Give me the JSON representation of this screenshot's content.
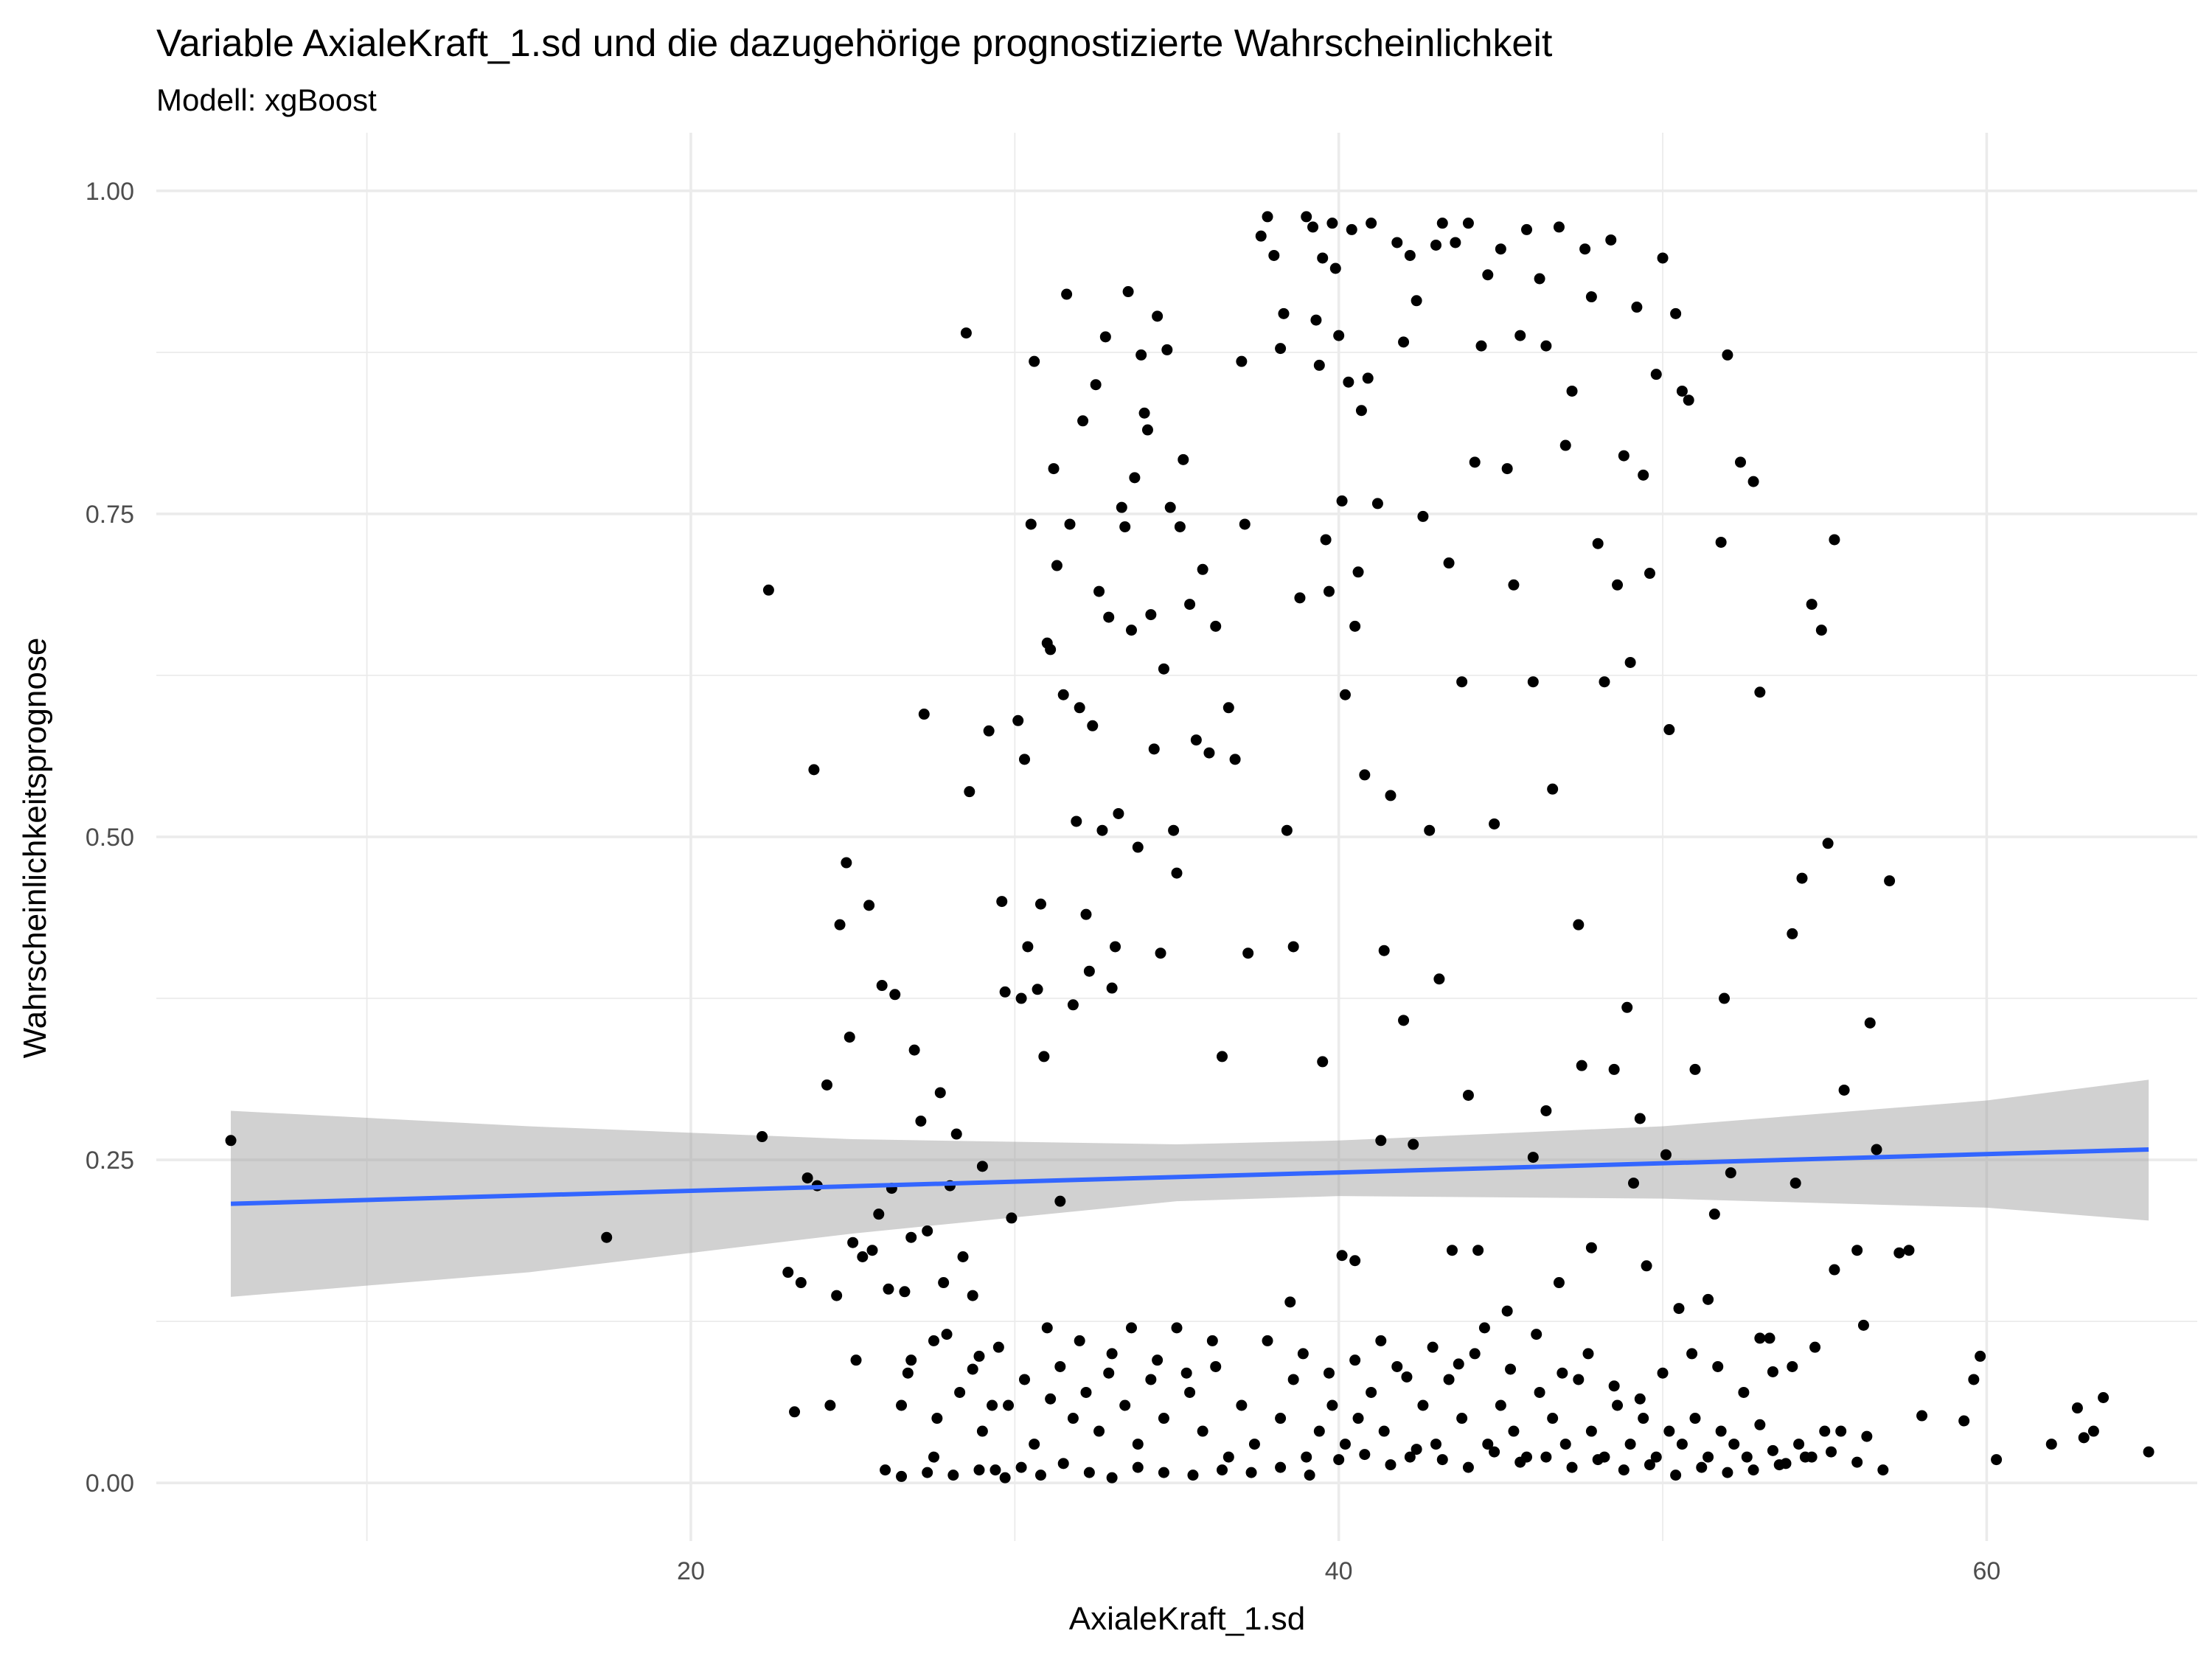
{
  "chart_data": {
    "type": "scatter",
    "title": "Variable AxialeKraft_1.sd und die dazugehörige prognostizierte Wahrscheinlichkeit",
    "subtitle": "Modell: xgBoost",
    "xlabel": "AxialeKraft_1.sd",
    "ylabel": "Wahrscheinlichkeitsprognose",
    "xlim": [
      3.5,
      66.5
    ],
    "ylim": [
      -0.045,
      1.045
    ],
    "x_ticks": [
      20,
      40,
      60
    ],
    "x_tick_labels": [
      "20",
      "40",
      "60"
    ],
    "y_ticks": [
      0,
      0.25,
      0.5,
      0.75,
      1.0
    ],
    "y_tick_labels": [
      "0.00",
      "0.25",
      "0.50",
      "0.75",
      "1.00"
    ],
    "grid": true,
    "point_color": "#000000",
    "trend_line": {
      "method": "linear",
      "color": "#3366FF",
      "x": [
        5.8,
        65.0
      ],
      "y": [
        0.216,
        0.258
      ]
    },
    "confidence_band": {
      "color": "#999999",
      "x": [
        5.8,
        15,
        25,
        35,
        40,
        50,
        60,
        65.0
      ],
      "upper": [
        0.288,
        0.276,
        0.266,
        0.262,
        0.265,
        0.276,
        0.296,
        0.312
      ],
      "lower": [
        0.144,
        0.163,
        0.193,
        0.218,
        0.222,
        0.22,
        0.213,
        0.203
      ]
    },
    "points": [
      [
        5.8,
        0.265
      ],
      [
        17.4,
        0.19
      ],
      [
        22.2,
        0.268
      ],
      [
        22.4,
        0.691
      ],
      [
        23.0,
        0.163
      ],
      [
        23.2,
        0.055
      ],
      [
        23.4,
        0.155
      ],
      [
        23.6,
        0.236
      ],
      [
        23.8,
        0.552
      ],
      [
        23.9,
        0.23
      ],
      [
        24.2,
        0.308
      ],
      [
        24.3,
        0.06
      ],
      [
        24.5,
        0.145
      ],
      [
        24.6,
        0.432
      ],
      [
        24.8,
        0.48
      ],
      [
        24.9,
        0.345
      ],
      [
        25.0,
        0.186
      ],
      [
        25.1,
        0.095
      ],
      [
        25.3,
        0.175
      ],
      [
        25.5,
        0.447
      ],
      [
        25.6,
        0.18
      ],
      [
        25.8,
        0.208
      ],
      [
        25.9,
        0.385
      ],
      [
        26.1,
        0.15
      ],
      [
        26.2,
        0.228
      ],
      [
        26.3,
        0.378
      ],
      [
        26.5,
        0.06
      ],
      [
        26.6,
        0.148
      ],
      [
        26.7,
        0.085
      ],
      [
        26.8,
        0.19
      ],
      [
        26.9,
        0.335
      ],
      [
        27.1,
        0.28
      ],
      [
        27.2,
        0.595
      ],
      [
        27.3,
        0.195
      ],
      [
        27.5,
        0.02
      ],
      [
        27.6,
        0.05
      ],
      [
        27.7,
        0.302
      ],
      [
        27.8,
        0.155
      ],
      [
        28.0,
        0.23
      ],
      [
        28.2,
        0.27
      ],
      [
        28.4,
        0.175
      ],
      [
        28.5,
        0.89
      ],
      [
        28.6,
        0.535
      ],
      [
        28.7,
        0.145
      ],
      [
        28.9,
        0.098
      ],
      [
        29.0,
        0.245
      ],
      [
        29.2,
        0.582
      ],
      [
        29.3,
        0.06
      ],
      [
        29.4,
        0.01
      ],
      [
        29.6,
        0.45
      ],
      [
        29.7,
        0.38
      ],
      [
        29.9,
        0.205
      ],
      [
        30.1,
        0.59
      ],
      [
        30.2,
        0.375
      ],
      [
        30.3,
        0.56
      ],
      [
        30.4,
        0.415
      ],
      [
        30.5,
        0.742
      ],
      [
        30.6,
        0.868
      ],
      [
        30.7,
        0.382
      ],
      [
        30.8,
        0.448
      ],
      [
        30.9,
        0.33
      ],
      [
        31.0,
        0.65
      ],
      [
        31.1,
        0.645
      ],
      [
        31.2,
        0.785
      ],
      [
        31.3,
        0.71
      ],
      [
        31.4,
        0.218
      ],
      [
        31.5,
        0.61
      ],
      [
        31.6,
        0.92
      ],
      [
        31.7,
        0.742
      ],
      [
        31.8,
        0.37
      ],
      [
        31.9,
        0.512
      ],
      [
        32.0,
        0.6
      ],
      [
        32.1,
        0.822
      ],
      [
        32.2,
        0.44
      ],
      [
        32.3,
        0.396
      ],
      [
        32.4,
        0.586
      ],
      [
        32.5,
        0.85
      ],
      [
        32.6,
        0.69
      ],
      [
        32.7,
        0.505
      ],
      [
        32.8,
        0.887
      ],
      [
        32.9,
        0.67
      ],
      [
        33.0,
        0.383
      ],
      [
        33.1,
        0.415
      ],
      [
        33.2,
        0.518
      ],
      [
        33.3,
        0.755
      ],
      [
        33.4,
        0.74
      ],
      [
        33.5,
        0.922
      ],
      [
        33.6,
        0.66
      ],
      [
        33.7,
        0.778
      ],
      [
        33.8,
        0.492
      ],
      [
        33.9,
        0.873
      ],
      [
        34.0,
        0.828
      ],
      [
        34.1,
        0.815
      ],
      [
        34.2,
        0.672
      ],
      [
        34.3,
        0.568
      ],
      [
        34.4,
        0.903
      ],
      [
        34.5,
        0.41
      ],
      [
        34.6,
        0.63
      ],
      [
        34.7,
        0.877
      ],
      [
        34.8,
        0.755
      ],
      [
        34.9,
        0.505
      ],
      [
        35.0,
        0.472
      ],
      [
        35.1,
        0.74
      ],
      [
        35.2,
        0.792
      ],
      [
        35.4,
        0.68
      ],
      [
        35.6,
        0.575
      ],
      [
        35.8,
        0.707
      ],
      [
        36.0,
        0.565
      ],
      [
        36.2,
        0.663
      ],
      [
        36.4,
        0.33
      ],
      [
        36.6,
        0.6
      ],
      [
        36.8,
        0.56
      ],
      [
        37.0,
        0.868
      ],
      [
        37.1,
        0.742
      ],
      [
        37.2,
        0.41
      ],
      [
        37.6,
        0.965
      ],
      [
        37.8,
        0.98
      ],
      [
        38.0,
        0.95
      ],
      [
        38.2,
        0.878
      ],
      [
        38.3,
        0.905
      ],
      [
        38.4,
        0.505
      ],
      [
        38.6,
        0.415
      ],
      [
        38.8,
        0.685
      ],
      [
        39.0,
        0.98
      ],
      [
        39.2,
        0.972
      ],
      [
        39.3,
        0.9
      ],
      [
        39.4,
        0.865
      ],
      [
        39.5,
        0.948
      ],
      [
        39.6,
        0.73
      ],
      [
        39.7,
        0.69
      ],
      [
        39.8,
        0.975
      ],
      [
        39.9,
        0.94
      ],
      [
        40.0,
        0.888
      ],
      [
        40.1,
        0.76
      ],
      [
        40.2,
        0.61
      ],
      [
        40.3,
        0.852
      ],
      [
        40.4,
        0.97
      ],
      [
        40.5,
        0.663
      ],
      [
        40.6,
        0.705
      ],
      [
        40.7,
        0.83
      ],
      [
        40.8,
        0.548
      ],
      [
        40.9,
        0.855
      ],
      [
        41.0,
        0.975
      ],
      [
        41.2,
        0.758
      ],
      [
        41.4,
        0.412
      ],
      [
        41.6,
        0.532
      ],
      [
        41.8,
        0.96
      ],
      [
        42.0,
        0.883
      ],
      [
        42.2,
        0.95
      ],
      [
        42.4,
        0.915
      ],
      [
        42.6,
        0.748
      ],
      [
        42.8,
        0.505
      ],
      [
        43.0,
        0.958
      ],
      [
        43.2,
        0.975
      ],
      [
        43.4,
        0.712
      ],
      [
        43.6,
        0.96
      ],
      [
        43.8,
        0.62
      ],
      [
        44.0,
        0.975
      ],
      [
        44.2,
        0.79
      ],
      [
        44.4,
        0.88
      ],
      [
        44.6,
        0.935
      ],
      [
        44.8,
        0.51
      ],
      [
        45.0,
        0.955
      ],
      [
        45.2,
        0.785
      ],
      [
        45.4,
        0.695
      ],
      [
        45.6,
        0.888
      ],
      [
        45.8,
        0.97
      ],
      [
        46.0,
        0.62
      ],
      [
        46.2,
        0.932
      ],
      [
        46.4,
        0.88
      ],
      [
        46.6,
        0.537
      ],
      [
        46.8,
        0.972
      ],
      [
        47.0,
        0.803
      ],
      [
        47.2,
        0.845
      ],
      [
        47.4,
        0.432
      ],
      [
        47.6,
        0.955
      ],
      [
        47.8,
        0.918
      ],
      [
        48.0,
        0.727
      ],
      [
        48.2,
        0.62
      ],
      [
        48.4,
        0.962
      ],
      [
        48.6,
        0.695
      ],
      [
        48.8,
        0.795
      ],
      [
        49.0,
        0.635
      ],
      [
        49.2,
        0.91
      ],
      [
        49.4,
        0.78
      ],
      [
        49.6,
        0.704
      ],
      [
        49.8,
        0.858
      ],
      [
        50.0,
        0.948
      ],
      [
        50.2,
        0.583
      ],
      [
        50.4,
        0.905
      ],
      [
        50.6,
        0.845
      ],
      [
        50.8,
        0.838
      ],
      [
        51.0,
        0.32
      ],
      [
        51.4,
        0.142
      ],
      [
        51.8,
        0.728
      ],
      [
        52.0,
        0.873
      ],
      [
        52.4,
        0.79
      ],
      [
        52.8,
        0.775
      ],
      [
        53.0,
        0.612
      ],
      [
        53.4,
        0.086
      ],
      [
        54.0,
        0.425
      ],
      [
        54.3,
        0.468
      ],
      [
        54.6,
        0.68
      ],
      [
        54.9,
        0.66
      ],
      [
        55.1,
        0.495
      ],
      [
        55.3,
        0.73
      ],
      [
        55.6,
        0.304
      ],
      [
        56.0,
        0.18
      ],
      [
        56.2,
        0.122
      ],
      [
        56.4,
        0.356
      ],
      [
        56.6,
        0.258
      ],
      [
        57.0,
        0.466
      ],
      [
        57.3,
        0.178
      ],
      [
        57.6,
        0.18
      ],
      [
        58.0,
        0.052
      ],
      [
        59.3,
        0.048
      ],
      [
        59.6,
        0.08
      ],
      [
        59.8,
        0.098
      ],
      [
        60.3,
        0.018
      ],
      [
        62.0,
        0.03
      ],
      [
        62.8,
        0.058
      ],
      [
        63.0,
        0.035
      ],
      [
        63.3,
        0.04
      ],
      [
        63.6,
        0.066
      ],
      [
        65.0,
        0.024
      ],
      [
        40.1,
        0.176
      ],
      [
        40.5,
        0.172
      ],
      [
        41.3,
        0.265
      ],
      [
        42.0,
        0.358
      ],
      [
        42.3,
        0.262
      ],
      [
        43.1,
        0.39
      ],
      [
        43.5,
        0.18
      ],
      [
        44.0,
        0.3
      ],
      [
        44.3,
        0.18
      ],
      [
        45.2,
        0.133
      ],
      [
        46.0,
        0.252
      ],
      [
        46.4,
        0.288
      ],
      [
        46.8,
        0.155
      ],
      [
        47.5,
        0.323
      ],
      [
        47.8,
        0.182
      ],
      [
        48.5,
        0.32
      ],
      [
        48.9,
        0.368
      ],
      [
        49.1,
        0.232
      ],
      [
        49.5,
        0.168
      ],
      [
        50.1,
        0.254
      ],
      [
        50.5,
        0.135
      ],
      [
        51.6,
        0.208
      ],
      [
        51.9,
        0.375
      ],
      [
        52.1,
        0.24
      ],
      [
        53.0,
        0.112
      ],
      [
        54.1,
        0.232
      ],
      [
        55.3,
        0.165
      ],
      [
        49.3,
        0.282
      ],
      [
        39.5,
        0.326
      ],
      [
        38.5,
        0.14
      ],
      [
        26.0,
        0.01
      ],
      [
        26.5,
        0.005
      ],
      [
        27.3,
        0.008
      ],
      [
        28.1,
        0.006
      ],
      [
        28.9,
        0.01
      ],
      [
        29.7,
        0.004
      ],
      [
        30.2,
        0.012
      ],
      [
        30.8,
        0.006
      ],
      [
        31.5,
        0.015
      ],
      [
        32.3,
        0.008
      ],
      [
        33.0,
        0.004
      ],
      [
        33.8,
        0.012
      ],
      [
        34.6,
        0.008
      ],
      [
        35.5,
        0.006
      ],
      [
        36.4,
        0.01
      ],
      [
        37.3,
        0.008
      ],
      [
        38.2,
        0.012
      ],
      [
        39.1,
        0.006
      ],
      [
        40.0,
        0.018
      ],
      [
        40.8,
        0.022
      ],
      [
        41.6,
        0.014
      ],
      [
        42.4,
        0.026
      ],
      [
        43.2,
        0.018
      ],
      [
        44.0,
        0.012
      ],
      [
        44.8,
        0.024
      ],
      [
        45.6,
        0.016
      ],
      [
        46.4,
        0.02
      ],
      [
        47.2,
        0.012
      ],
      [
        48.0,
        0.018
      ],
      [
        48.8,
        0.01
      ],
      [
        49.6,
        0.014
      ],
      [
        50.4,
        0.006
      ],
      [
        51.2,
        0.012
      ],
      [
        52.0,
        0.008
      ],
      [
        52.8,
        0.01
      ],
      [
        53.6,
        0.014
      ],
      [
        54.4,
        0.02
      ],
      [
        55.2,
        0.024
      ],
      [
        56.0,
        0.016
      ],
      [
        56.8,
        0.01
      ],
      [
        27.5,
        0.11
      ],
      [
        28.3,
        0.07
      ],
      [
        29.0,
        0.04
      ],
      [
        29.8,
        0.06
      ],
      [
        30.6,
        0.03
      ],
      [
        31.0,
        0.12
      ],
      [
        31.4,
        0.09
      ],
      [
        31.8,
        0.05
      ],
      [
        32.2,
        0.07
      ],
      [
        32.6,
        0.04
      ],
      [
        33.0,
        0.1
      ],
      [
        33.4,
        0.06
      ],
      [
        33.8,
        0.03
      ],
      [
        34.2,
        0.08
      ],
      [
        34.6,
        0.05
      ],
      [
        35.0,
        0.12
      ],
      [
        35.4,
        0.07
      ],
      [
        35.8,
        0.04
      ],
      [
        36.2,
        0.09
      ],
      [
        36.6,
        0.02
      ],
      [
        37.0,
        0.06
      ],
      [
        37.4,
        0.03
      ],
      [
        37.8,
        0.11
      ],
      [
        38.2,
        0.05
      ],
      [
        38.6,
        0.08
      ],
      [
        39.0,
        0.02
      ],
      [
        39.4,
        0.04
      ],
      [
        39.8,
        0.06
      ],
      [
        40.2,
        0.03
      ],
      [
        40.6,
        0.05
      ],
      [
        41.0,
        0.07
      ],
      [
        41.4,
        0.04
      ],
      [
        41.8,
        0.09
      ],
      [
        42.2,
        0.02
      ],
      [
        42.6,
        0.06
      ],
      [
        43.0,
        0.03
      ],
      [
        43.4,
        0.08
      ],
      [
        43.8,
        0.05
      ],
      [
        44.2,
        0.1
      ],
      [
        44.6,
        0.03
      ],
      [
        45.0,
        0.06
      ],
      [
        45.4,
        0.04
      ],
      [
        45.8,
        0.02
      ],
      [
        46.2,
        0.07
      ],
      [
        46.6,
        0.05
      ],
      [
        47.0,
        0.03
      ],
      [
        47.4,
        0.08
      ],
      [
        47.8,
        0.04
      ],
      [
        48.2,
        0.02
      ],
      [
        48.6,
        0.06
      ],
      [
        49.0,
        0.03
      ],
      [
        49.4,
        0.05
      ],
      [
        49.8,
        0.02
      ],
      [
        50.2,
        0.04
      ],
      [
        50.6,
        0.03
      ],
      [
        51.0,
        0.05
      ],
      [
        51.4,
        0.02
      ],
      [
        51.8,
        0.04
      ],
      [
        52.2,
        0.03
      ],
      [
        52.6,
        0.02
      ],
      [
        53.0,
        0.045
      ],
      [
        53.4,
        0.025
      ],
      [
        53.8,
        0.015
      ],
      [
        54.2,
        0.03
      ],
      [
        54.6,
        0.02
      ],
      [
        55.0,
        0.04
      ],
      [
        26.8,
        0.095
      ],
      [
        27.9,
        0.115
      ],
      [
        28.7,
        0.088
      ],
      [
        29.5,
        0.105
      ],
      [
        30.3,
        0.08
      ],
      [
        31.1,
        0.065
      ],
      [
        32.0,
        0.11
      ],
      [
        32.9,
        0.085
      ],
      [
        33.6,
        0.12
      ],
      [
        34.4,
        0.095
      ],
      [
        35.3,
        0.085
      ],
      [
        36.1,
        0.11
      ],
      [
        38.9,
        0.1
      ],
      [
        39.7,
        0.085
      ],
      [
        40.5,
        0.095
      ],
      [
        41.3,
        0.11
      ],
      [
        42.1,
        0.082
      ],
      [
        42.9,
        0.105
      ],
      [
        43.7,
        0.092
      ],
      [
        44.5,
        0.12
      ],
      [
        45.3,
        0.088
      ],
      [
        46.1,
        0.115
      ],
      [
        46.9,
        0.085
      ],
      [
        47.7,
        0.1
      ],
      [
        48.5,
        0.075
      ],
      [
        49.3,
        0.065
      ],
      [
        50.0,
        0.085
      ],
      [
        50.9,
        0.1
      ],
      [
        51.7,
        0.09
      ],
      [
        52.5,
        0.07
      ],
      [
        53.3,
        0.112
      ],
      [
        54.0,
        0.09
      ],
      [
        54.7,
        0.105
      ],
      [
        55.5,
        0.04
      ],
      [
        56.3,
        0.036
      ]
    ]
  }
}
